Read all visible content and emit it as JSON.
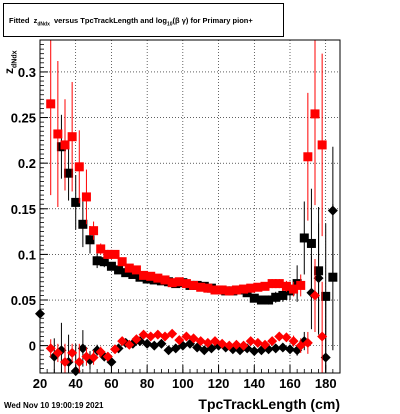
{
  "title": {
    "prefix": "Fitted",
    "z": "z",
    "z_sub": "dNdx",
    "mid": "versus TpcTrackLength and log",
    "log_sub": "10",
    "tail": "(β γ) for Primary pion+"
  },
  "timestamp": "Wed Nov 10 19:00:19 2021",
  "xlabel": "TpcTrackLength (cm)",
  "ylabel": {
    "z": "z",
    "sub": "dNdx"
  },
  "chart_data": {
    "type": "scatter",
    "title": "Fitted z_dNdx versus TpcTrackLength and log10(β γ) for Primary pion+",
    "xlabel": "TpcTrackLength (cm)",
    "ylabel": "z_dNdx",
    "xlim": [
      20,
      188
    ],
    "ylim": [
      -0.03,
      0.335
    ],
    "x_ticks": [
      20,
      40,
      60,
      80,
      100,
      120,
      140,
      160,
      180
    ],
    "y_ticks": [
      0,
      0.05,
      0.1,
      0.15,
      0.2,
      0.25,
      0.3
    ],
    "y_tick_labels": [
      "0",
      "0.05",
      "0.1",
      "0.15",
      "0.2",
      "0.25",
      "0.3"
    ],
    "grid": true,
    "series": [
      {
        "kind": "mean",
        "marker": "square",
        "color": "#000000",
        "x": [
          32,
          36,
          40,
          44,
          48,
          52,
          56,
          60,
          64,
          68,
          72,
          76,
          80,
          84,
          88,
          92,
          96,
          100,
          104,
          108,
          112,
          116,
          120,
          124,
          128,
          132,
          136,
          140,
          144,
          148,
          152,
          156,
          160,
          164,
          168,
          172,
          176,
          180,
          184
        ],
        "y": [
          0.218,
          0.189,
          0.157,
          0.133,
          0.116,
          0.093,
          0.092,
          0.087,
          0.083,
          0.08,
          0.078,
          0.075,
          0.073,
          0.072,
          0.071,
          0.07,
          0.068,
          0.069,
          0.066,
          0.066,
          0.065,
          0.063,
          0.061,
          0.06,
          0.06,
          0.061,
          0.058,
          0.052,
          0.05,
          0.05,
          0.053,
          0.055,
          0.06,
          0.068,
          0.118,
          0.112,
          0.082,
          0.054,
          0.075
        ],
        "err": [
          0.035,
          0.03,
          0.03,
          0.025,
          0.015,
          0.008,
          0.006,
          0.004,
          0.004,
          0.003,
          0.003,
          0.003,
          0.003,
          0.003,
          0.003,
          0.003,
          0.003,
          0.003,
          0.003,
          0.003,
          0.003,
          0.003,
          0.003,
          0.003,
          0.003,
          0.003,
          0.003,
          0.004,
          0.004,
          0.005,
          0.006,
          0.007,
          0.01,
          0.02,
          0.04,
          0.06,
          0.07,
          0.08,
          0.08
        ]
      },
      {
        "kind": "mean",
        "marker": "square",
        "color": "#ff0000",
        "x": [
          26,
          30,
          34,
          38,
          42,
          46,
          50,
          54,
          58,
          62,
          66,
          70,
          74,
          78,
          82,
          86,
          90,
          94,
          98,
          102,
          106,
          110,
          114,
          118,
          122,
          126,
          130,
          134,
          138,
          142,
          146,
          150,
          154,
          158,
          162,
          166,
          170,
          174,
          178
        ],
        "y": [
          0.265,
          0.232,
          0.22,
          0.229,
          0.196,
          0.163,
          0.126,
          0.106,
          0.1,
          0.1,
          0.092,
          0.085,
          0.083,
          0.077,
          0.076,
          0.074,
          0.072,
          0.069,
          0.07,
          0.068,
          0.066,
          0.064,
          0.063,
          0.061,
          0.061,
          0.06,
          0.061,
          0.062,
          0.063,
          0.064,
          0.065,
          0.068,
          0.068,
          0.065,
          0.062,
          0.066,
          0.207,
          0.254,
          0.22
        ],
        "err": [
          0.1,
          0.08,
          0.05,
          0.06,
          0.04,
          0.03,
          0.01,
          0.006,
          0.005,
          0.004,
          0.004,
          0.003,
          0.003,
          0.003,
          0.003,
          0.003,
          0.003,
          0.003,
          0.003,
          0.003,
          0.003,
          0.003,
          0.003,
          0.003,
          0.003,
          0.003,
          0.003,
          0.003,
          0.003,
          0.004,
          0.004,
          0.005,
          0.005,
          0.006,
          0.008,
          0.012,
          0.07,
          0.1,
          0.1
        ]
      },
      {
        "kind": "sigma",
        "marker": "diamond",
        "color": "#000000",
        "x": [
          20,
          28,
          32,
          36,
          40,
          44,
          48,
          52,
          56,
          60,
          64,
          68,
          72,
          76,
          80,
          84,
          88,
          92,
          96,
          100,
          104,
          108,
          112,
          116,
          120,
          124,
          128,
          132,
          136,
          140,
          144,
          148,
          152,
          156,
          160,
          164,
          168,
          172,
          176,
          180,
          184
        ],
        "y": [
          0.035,
          -0.012,
          -0.005,
          -0.018,
          -0.028,
          -0.003,
          -0.016,
          -0.005,
          -0.012,
          -0.018,
          -0.003,
          0.003,
          0.002,
          0.005,
          0.002,
          0.0,
          0.002,
          -0.005,
          -0.003,
          0.0,
          0.002,
          -0.002,
          -0.005,
          -0.003,
          0.0,
          -0.002,
          -0.004,
          -0.005,
          -0.003,
          -0.006,
          -0.005,
          -0.004,
          -0.003,
          -0.002,
          -0.004,
          -0.005,
          0.005,
          0.058,
          0.074,
          -0.013,
          0.148
        ],
        "err": [
          0.01,
          0.02,
          0.03,
          0.03,
          0.03,
          0.02,
          0.01,
          0.006,
          0.005,
          0.004,
          0.003,
          0.003,
          0.003,
          0.003,
          0.003,
          0.003,
          0.003,
          0.003,
          0.003,
          0.003,
          0.003,
          0.003,
          0.003,
          0.003,
          0.003,
          0.003,
          0.003,
          0.003,
          0.003,
          0.003,
          0.003,
          0.003,
          0.004,
          0.004,
          0.005,
          0.006,
          0.01,
          0.04,
          0.06,
          0.07,
          0.07
        ]
      },
      {
        "kind": "sigma",
        "marker": "diamond",
        "color": "#ff0000",
        "x": [
          26,
          30,
          34,
          38,
          42,
          46,
          50,
          54,
          58,
          62,
          66,
          70,
          74,
          78,
          82,
          86,
          90,
          94,
          98,
          102,
          106,
          110,
          114,
          118,
          122,
          126,
          130,
          134,
          138,
          142,
          146,
          150,
          154,
          158,
          162,
          166,
          170,
          174,
          178
        ],
        "y": [
          -0.003,
          -0.008,
          -0.018,
          -0.008,
          -0.018,
          -0.012,
          -0.013,
          -0.007,
          -0.012,
          -0.004,
          0.005,
          0.001,
          0.007,
          0.012,
          0.01,
          0.012,
          0.01,
          0.013,
          0.006,
          0.01,
          0.008,
          0.005,
          0.003,
          0.005,
          0.002,
          0.0,
          0.001,
          0.0,
          0.005,
          0.003,
          0.001,
          0.005,
          0.01,
          0.009,
          0.005,
          0.0,
          0.003,
          0.055,
          0.01
        ],
        "err": [
          0.01,
          0.01,
          0.02,
          0.01,
          0.02,
          0.01,
          0.008,
          0.006,
          0.005,
          0.004,
          0.003,
          0.003,
          0.003,
          0.003,
          0.003,
          0.003,
          0.003,
          0.003,
          0.003,
          0.003,
          0.003,
          0.003,
          0.003,
          0.003,
          0.003,
          0.003,
          0.003,
          0.003,
          0.003,
          0.003,
          0.003,
          0.004,
          0.004,
          0.005,
          0.006,
          0.008,
          0.012,
          0.04,
          0.06
        ]
      }
    ]
  }
}
